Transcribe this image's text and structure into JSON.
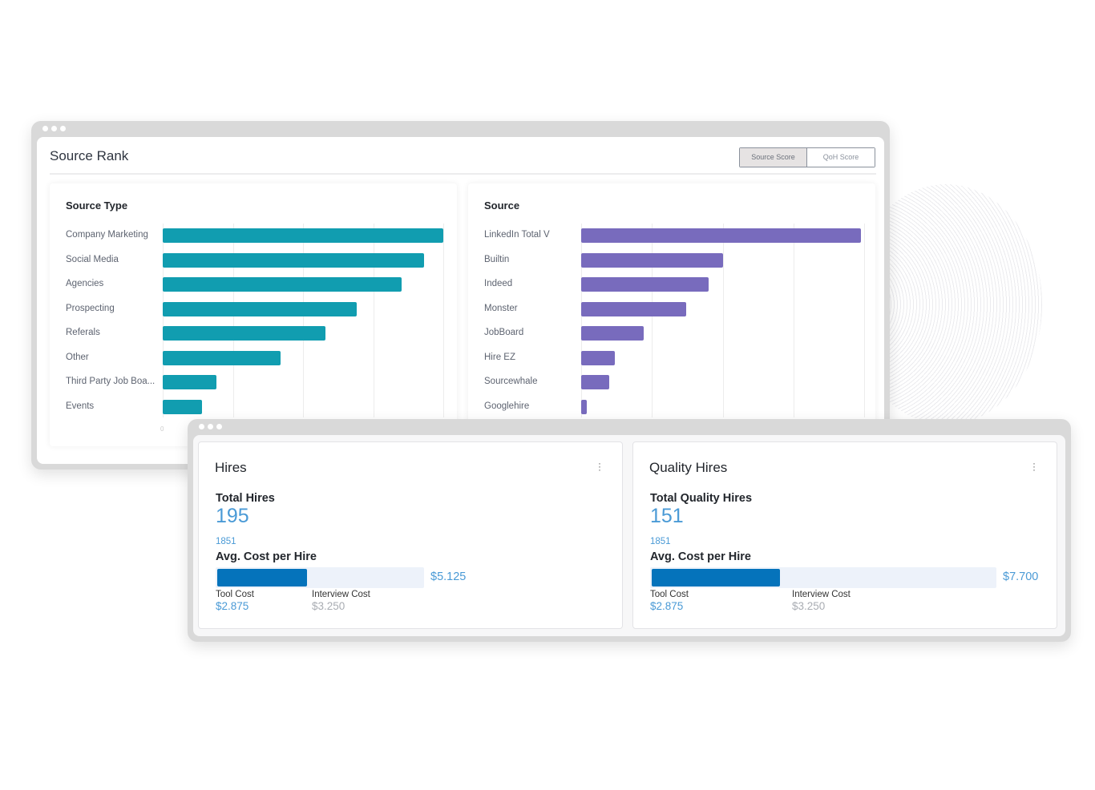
{
  "source_rank": {
    "title": "Source Rank",
    "toggle": [
      "Source Score",
      "QoH Score"
    ],
    "active_toggle": "Source Score"
  },
  "chart_data": [
    {
      "type": "bar",
      "orientation": "horizontal",
      "title": "Source Type",
      "categories": [
        "Company Marketing",
        "Social Media",
        "Agencies",
        "Prospecting",
        "Referals",
        "Other",
        "Third Party Job Boa...",
        "Events"
      ],
      "values": [
        100,
        93,
        85,
        69,
        58,
        42,
        19,
        14
      ],
      "xlim": [
        0,
        100
      ],
      "x_ticks": [
        "0"
      ],
      "color": "#119db0",
      "grid": true
    },
    {
      "type": "bar",
      "orientation": "horizontal",
      "title": "Source",
      "categories": [
        "LinkedIn Total V",
        "Builtin",
        "Indeed",
        "Monster",
        "JobBoard",
        "Hire EZ",
        "Sourcewhale",
        "Googlehire"
      ],
      "values": [
        99,
        50,
        45,
        37,
        22,
        12,
        10,
        2
      ],
      "xlim": [
        0,
        100
      ],
      "color": "#786bbd",
      "grid": true
    }
  ],
  "hires": {
    "title": "Hires",
    "total_label": "Total Hires",
    "total": "195",
    "count": "1851",
    "avg_label": "Avg. Cost per Hire",
    "avg": "$5.125",
    "fill_pct": 43,
    "tool_label": "Tool Cost",
    "tool": "$2.875",
    "interview_label": "Interview Cost",
    "interview": "$3.250"
  },
  "quality": {
    "title": "Quality Hires",
    "total_label": "Total Quality Hires",
    "total": "151",
    "count": "1851",
    "avg_label": "Avg. Cost per Hire",
    "avg": "$7.700",
    "fill_pct": 37,
    "tool_label": "Tool Cost",
    "tool": "$2.875",
    "interview_label": "Interview Cost",
    "interview": "$3.250"
  }
}
